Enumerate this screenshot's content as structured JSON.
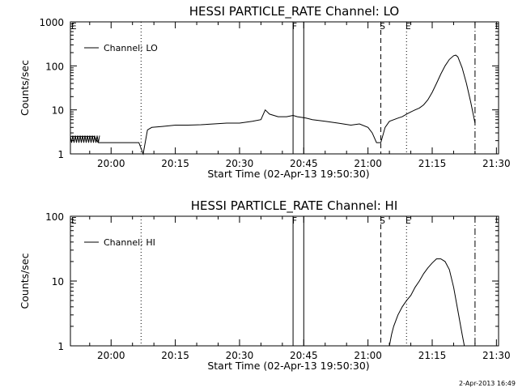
{
  "chart_data": [
    {
      "type": "line",
      "title": "HESSI PARTICLE_RATE Channel: LO",
      "xlabel": "Start Time (02-Apr-13 19:50:30)",
      "ylabel": "Counts/sec",
      "yscale": "log",
      "xlim": [
        "19:50:30",
        "21:30:30"
      ],
      "ylim": [
        1,
        1000
      ],
      "x_ticks": [
        "20:00",
        "20:15",
        "20:30",
        "20:45",
        "21:00",
        "21:15",
        "21:30"
      ],
      "y_ticks": [
        "1",
        "10",
        "100",
        "1000"
      ],
      "legend": {
        "position": "top-left",
        "entries": [
          "Channel: LO"
        ]
      },
      "markers": [
        {
          "label": "",
          "time": "20:07:00",
          "style": "dotted"
        },
        {
          "label": "F",
          "time": "20:42:30",
          "style": "solid"
        },
        {
          "label": "",
          "time": "20:45:00",
          "style": "solid"
        },
        {
          "label": "S",
          "time": "21:03:00",
          "style": "dashed"
        },
        {
          "label": "E",
          "time": "21:09:00",
          "style": "dotted"
        },
        {
          "label": "",
          "time": "21:25:00",
          "style": "dashdot"
        }
      ],
      "corner_label": "E",
      "series": [
        {
          "name": "Channel: LO",
          "x": [
            "19:50:30",
            "19:56:00",
            "19:57:00",
            "19:58:00",
            "20:00:00",
            "20:03:00",
            "20:05:30",
            "20:06:30",
            "20:07:30",
            "20:08:30",
            "20:09:30",
            "20:12:00",
            "20:15:00",
            "20:18:00",
            "20:21:00",
            "20:24:00",
            "20:27:00",
            "20:30:00",
            "20:33:00",
            "20:35:00",
            "20:36:00",
            "20:37:00",
            "20:38:00",
            "20:39:00",
            "20:41:00",
            "20:42:30",
            "20:43:30",
            "20:45:30",
            "20:47:00",
            "20:50:00",
            "20:53:00",
            "20:56:00",
            "20:58:00",
            "21:00:00",
            "21:01:00",
            "21:02:00",
            "21:03:00",
            "21:04:00",
            "21:05:00",
            "21:07:00",
            "21:08:00",
            "21:09:00",
            "21:10:00",
            "21:11:00",
            "21:12:00",
            "21:13:00",
            "21:14:00",
            "21:15:00",
            "21:16:00",
            "21:17:00",
            "21:18:00",
            "21:19:00",
            "21:20:00",
            "21:20:30",
            "21:21:00",
            "21:22:00",
            "21:23:00",
            "21:24:00",
            "21:25:00"
          ],
          "values": [
            2.5,
            2.5,
            1.8,
            1.8,
            1.8,
            1.8,
            1.8,
            1.8,
            1.0,
            3.5,
            4.0,
            4.2,
            4.5,
            4.5,
            4.6,
            4.8,
            5.0,
            5.0,
            5.5,
            6.0,
            10.0,
            8.0,
            7.5,
            7.0,
            7.0,
            7.5,
            7.0,
            6.5,
            6.0,
            5.5,
            5.0,
            4.5,
            4.8,
            4.0,
            3.0,
            1.8,
            1.8,
            4.0,
            5.5,
            6.5,
            7.0,
            8.0,
            9.0,
            10.0,
            11.0,
            13.0,
            17.0,
            25.0,
            40.0,
            65.0,
            100.0,
            140.0,
            170.0,
            175.0,
            160.0,
            90.0,
            40.0,
            15.0,
            5.0
          ]
        }
      ]
    },
    {
      "type": "line",
      "title": "HESSI PARTICLE_RATE Channel: HI",
      "xlabel": "Start Time (02-Apr-13 19:50:30)",
      "ylabel": "Counts/sec",
      "yscale": "log",
      "xlim": [
        "19:50:30",
        "21:30:30"
      ],
      "ylim": [
        1,
        100
      ],
      "x_ticks": [
        "20:00",
        "20:15",
        "20:30",
        "20:45",
        "21:00",
        "21:15",
        "21:30"
      ],
      "y_ticks": [
        "1",
        "10",
        "100"
      ],
      "legend": {
        "position": "top-left",
        "entries": [
          "Channel: HI"
        ]
      },
      "markers": [
        {
          "label": "",
          "time": "20:07:00",
          "style": "dotted"
        },
        {
          "label": "F",
          "time": "20:42:30",
          "style": "solid"
        },
        {
          "label": "",
          "time": "20:45:00",
          "style": "solid"
        },
        {
          "label": "S",
          "time": "21:03:00",
          "style": "dashed"
        },
        {
          "label": "E",
          "time": "21:09:00",
          "style": "dotted"
        },
        {
          "label": "",
          "time": "21:25:00",
          "style": "dashdot"
        }
      ],
      "corner_label": "E",
      "series": [
        {
          "name": "Channel: HI",
          "x": [
            "21:05:00",
            "21:05:30",
            "21:06:00",
            "21:07:00",
            "21:08:00",
            "21:09:00",
            "21:10:00",
            "21:11:00",
            "21:12:00",
            "21:13:00",
            "21:14:00",
            "21:15:00",
            "21:16:00",
            "21:17:00",
            "21:18:00",
            "21:19:00",
            "21:20:00",
            "21:21:00",
            "21:22:00",
            "21:22:30"
          ],
          "values": [
            1.0,
            1.5,
            2.0,
            3.0,
            4.0,
            5.0,
            6.0,
            8.0,
            10.0,
            13.0,
            16.0,
            19.0,
            22.0,
            22.0,
            20.0,
            15.0,
            8.0,
            3.5,
            1.5,
            1.0
          ]
        }
      ]
    }
  ],
  "timestamp": "2-Apr-2013 16:49"
}
